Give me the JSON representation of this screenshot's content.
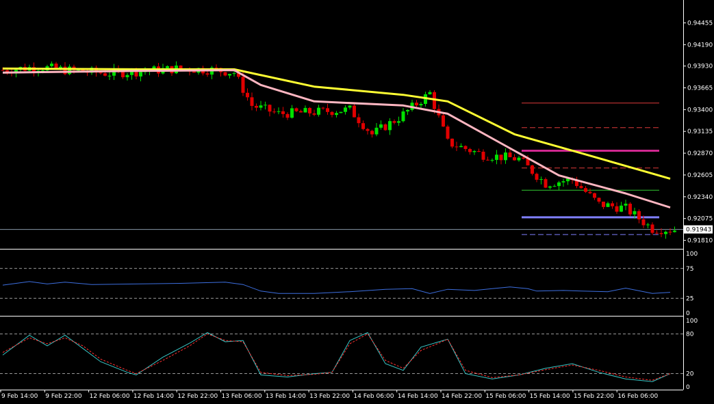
{
  "chart_data": [
    {
      "type": "candlestick",
      "panel": "price",
      "y_ticks": [
        "0.94455",
        "0.94190",
        "0.93930",
        "0.93665",
        "0.93400",
        "0.93135",
        "0.92870",
        "0.92605",
        "0.92340",
        "0.92075",
        "0.91810"
      ],
      "ylim": [
        0.9174,
        0.9465
      ],
      "current_price_label": "0.91943",
      "current_price": 0.91943,
      "bar_count": 152,
      "candles_keypoints": [
        {
          "i": 0,
          "close": 0.9388
        },
        {
          "i": 8,
          "close": 0.9392
        },
        {
          "i": 16,
          "close": 0.9387
        },
        {
          "i": 24,
          "close": 0.9384
        },
        {
          "i": 32,
          "close": 0.9387
        },
        {
          "i": 40,
          "close": 0.939
        },
        {
          "i": 48,
          "close": 0.9388
        },
        {
          "i": 52,
          "close": 0.9385
        },
        {
          "i": 56,
          "close": 0.9345
        },
        {
          "i": 62,
          "close": 0.9335
        },
        {
          "i": 70,
          "close": 0.9337
        },
        {
          "i": 78,
          "close": 0.934
        },
        {
          "i": 83,
          "close": 0.931
        },
        {
          "i": 89,
          "close": 0.933
        },
        {
          "i": 96,
          "close": 0.936
        },
        {
          "i": 100,
          "close": 0.93
        },
        {
          "i": 108,
          "close": 0.9285
        },
        {
          "i": 116,
          "close": 0.928
        },
        {
          "i": 122,
          "close": 0.925
        },
        {
          "i": 128,
          "close": 0.9255
        },
        {
          "i": 134,
          "close": 0.9225
        },
        {
          "i": 140,
          "close": 0.922
        },
        {
          "i": 146,
          "close": 0.9195
        },
        {
          "i": 151,
          "close": 0.9194
        }
      ],
      "moving_averages": [
        {
          "name": "",
          "color": "#ffff33",
          "points": [
            [
              0,
              0.939
            ],
            [
              30,
              0.9389
            ],
            [
              52,
              0.9389
            ],
            [
              70,
              0.9368
            ],
            [
              90,
              0.9358
            ],
            [
              100,
              0.935
            ],
            [
              115,
              0.931
            ],
            [
              130,
              0.9287
            ],
            [
              150,
              0.9256
            ]
          ]
        },
        {
          "name": "",
          "color": "#ffb6c1",
          "points": [
            [
              0,
              0.9385
            ],
            [
              30,
              0.9387
            ],
            [
              52,
              0.9388
            ],
            [
              58,
              0.937
            ],
            [
              70,
              0.935
            ],
            [
              90,
              0.9345
            ],
            [
              100,
              0.9335
            ],
            [
              115,
              0.929
            ],
            [
              125,
              0.926
            ],
            [
              140,
              0.9238
            ],
            [
              150,
              0.9221
            ]
          ]
        }
      ],
      "horizontal_levels": [
        {
          "value": 0.9348,
          "color": "#e03a3a",
          "style": "solid",
          "width": 1
        },
        {
          "value": 0.9318,
          "color": "#e03a3a",
          "style": "dashed",
          "width": 1
        },
        {
          "value": 0.929,
          "color": "#d02890",
          "style": "solid",
          "width": 3
        },
        {
          "value": 0.9269,
          "color": "#e03a3a",
          "style": "dashed",
          "width": 1
        },
        {
          "value": 0.9242,
          "color": "#33cc33",
          "style": "solid",
          "width": 1
        },
        {
          "value": 0.9209,
          "color": "#8080ff",
          "style": "solid",
          "width": 3
        },
        {
          "value": 0.9188,
          "color": "#7f7fff",
          "style": "dashed",
          "width": 1
        }
      ]
    },
    {
      "type": "line",
      "panel": "rsi",
      "y_ticks": [
        "100",
        "75",
        "25",
        "0"
      ],
      "ylim": [
        0,
        100
      ],
      "levels": [
        75,
        25
      ],
      "series": [
        {
          "name": "",
          "color": "#3d6fe0",
          "points": [
            [
              0,
              47
            ],
            [
              6,
              53
            ],
            [
              10,
              49
            ],
            [
              14,
              52
            ],
            [
              20,
              48
            ],
            [
              30,
              49
            ],
            [
              40,
              50
            ],
            [
              50,
              52
            ],
            [
              54,
              48
            ],
            [
              58,
              37
            ],
            [
              62,
              33
            ],
            [
              70,
              33
            ],
            [
              78,
              36
            ],
            [
              86,
              40
            ],
            [
              92,
              41
            ],
            [
              96,
              33
            ],
            [
              100,
              40
            ],
            [
              106,
              38
            ],
            [
              110,
              41
            ],
            [
              114,
              44
            ],
            [
              118,
              41
            ],
            [
              120,
              37
            ],
            [
              126,
              38
            ],
            [
              130,
              37
            ],
            [
              136,
              36
            ],
            [
              140,
              42
            ],
            [
              146,
              33
            ],
            [
              150,
              35
            ]
          ]
        }
      ]
    },
    {
      "type": "line",
      "panel": "stochastic",
      "y_ticks": [
        "100",
        "80",
        "20",
        "0"
      ],
      "ylim": [
        0,
        100
      ],
      "levels": [
        80,
        20
      ],
      "series": [
        {
          "name": "",
          "color": "#38c8c8",
          "points": [
            [
              0,
              48
            ],
            [
              6,
              78
            ],
            [
              10,
              62
            ],
            [
              14,
              78
            ],
            [
              18,
              58
            ],
            [
              22,
              38
            ],
            [
              28,
              22
            ],
            [
              30,
              18
            ],
            [
              36,
              45
            ],
            [
              42,
              66
            ],
            [
              46,
              82
            ],
            [
              50,
              68
            ],
            [
              54,
              70
            ],
            [
              58,
              18
            ],
            [
              64,
              15
            ],
            [
              70,
              20
            ],
            [
              74,
              22
            ],
            [
              78,
              70
            ],
            [
              82,
              82
            ],
            [
              86,
              35
            ],
            [
              90,
              25
            ],
            [
              94,
              60
            ],
            [
              98,
              68
            ],
            [
              100,
              72
            ],
            [
              104,
              20
            ],
            [
              110,
              12
            ],
            [
              116,
              18
            ],
            [
              122,
              28
            ],
            [
              128,
              35
            ],
            [
              134,
              22
            ],
            [
              140,
              12
            ],
            [
              146,
              8
            ],
            [
              150,
              20
            ]
          ]
        },
        {
          "name": "",
          "color": "#ff3030",
          "dashed": true,
          "points": [
            [
              0,
              52
            ],
            [
              6,
              74
            ],
            [
              10,
              65
            ],
            [
              14,
              74
            ],
            [
              18,
              62
            ],
            [
              22,
              42
            ],
            [
              28,
              25
            ],
            [
              30,
              20
            ],
            [
              36,
              40
            ],
            [
              42,
              62
            ],
            [
              46,
              80
            ],
            [
              50,
              70
            ],
            [
              54,
              68
            ],
            [
              58,
              22
            ],
            [
              64,
              17
            ],
            [
              70,
              19
            ],
            [
              74,
              22
            ],
            [
              78,
              65
            ],
            [
              82,
              80
            ],
            [
              86,
              40
            ],
            [
              90,
              28
            ],
            [
              94,
              55
            ],
            [
              98,
              66
            ],
            [
              100,
              72
            ],
            [
              104,
              25
            ],
            [
              110,
              14
            ],
            [
              116,
              18
            ],
            [
              122,
              26
            ],
            [
              128,
              33
            ],
            [
              134,
              25
            ],
            [
              140,
              15
            ],
            [
              146,
              10
            ],
            [
              150,
              20
            ]
          ]
        }
      ]
    }
  ],
  "x_labels": [
    {
      "i": 2,
      "text": "9 Feb 14:00"
    },
    {
      "i": 18,
      "text": "9 Feb 22:00"
    },
    {
      "i": 34,
      "text": "12 Feb 06:00"
    },
    {
      "i": 50,
      "text": "12 Feb 14:00"
    },
    {
      "i": 66,
      "text": "12 Feb 22:00"
    },
    {
      "i": 82,
      "text": "13 Feb 06:00"
    },
    {
      "i": 98,
      "text": "13 Feb 14:00"
    },
    {
      "i": 114,
      "text": "13 Feb 22:00"
    },
    {
      "i": 130,
      "text": "14 Feb 06:00"
    },
    {
      "i": 146,
      "text": "14 Feb 14:00"
    },
    {
      "i": 162,
      "text": "14 Feb 22:00"
    },
    {
      "i": 178,
      "text": "15 Feb 06:00"
    },
    {
      "i": 194,
      "text": "15 Feb 14:00"
    },
    {
      "i": 210,
      "text": "15 Feb 22:00"
    },
    {
      "i": 226,
      "text": "16 Feb 06:00"
    }
  ],
  "colors": {
    "background": "#000000",
    "axis": "#ffffff",
    "bull": "#00e000",
    "bear": "#e00000",
    "level_line": "#888888",
    "price_tag_bg": "#ffffff"
  }
}
